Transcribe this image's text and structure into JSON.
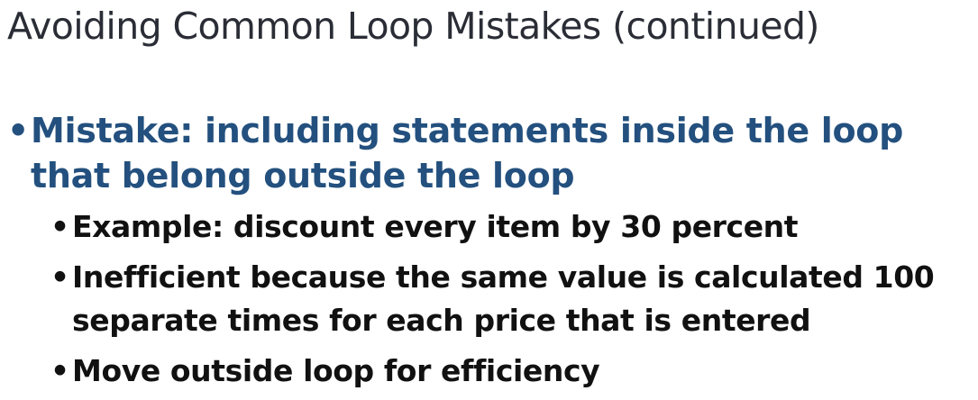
{
  "slide": {
    "title": "Avoiding Common Loop Mistakes (continued)",
    "main_bullet": {
      "marker": "•",
      "text": "Mistake: including statements inside the loop that belong outside the loop"
    },
    "sub_bullets": [
      {
        "marker": "•",
        "text": "Example: discount every item by 30 percent"
      },
      {
        "marker": "•",
        "text": "Inefficient because the same value is calculated 100 separate times for each price that is entered"
      },
      {
        "marker": "•",
        "text": "Move outside loop for efficiency"
      }
    ]
  },
  "colors": {
    "title": "#2a2d35",
    "main_bullet": "#23507e",
    "sub_bullet": "#111111",
    "background": "#ffffff"
  }
}
